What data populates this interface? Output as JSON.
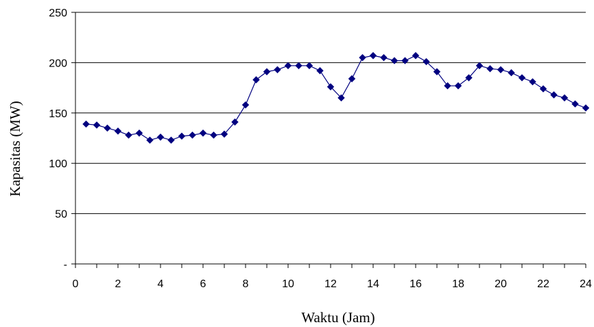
{
  "chart_data": {
    "type": "line",
    "title": "",
    "xlabel": "Waktu (Jam)",
    "ylabel": "Kapasitas (MW)",
    "xlim": [
      0,
      24
    ],
    "ylim": [
      0,
      250
    ],
    "x_ticks": [
      0,
      2,
      4,
      6,
      8,
      10,
      12,
      14,
      16,
      18,
      20,
      22,
      24
    ],
    "y_ticks": [
      {
        "value": 0,
        "label": "-"
      },
      {
        "value": 50,
        "label": "50"
      },
      {
        "value": 100,
        "label": "100"
      },
      {
        "value": 150,
        "label": "150"
      },
      {
        "value": 200,
        "label": "200"
      },
      {
        "value": 250,
        "label": "250"
      }
    ],
    "grid": "horizontal",
    "legend": "none",
    "series": [
      {
        "color": "#000080",
        "marker": "diamond",
        "x": [
          0.5,
          1,
          1.5,
          2,
          2.5,
          3,
          3.5,
          4,
          4.5,
          5,
          5.5,
          6,
          6.5,
          7,
          7.5,
          8,
          8.5,
          9,
          9.5,
          10,
          10.5,
          11,
          11.5,
          12,
          12.5,
          13,
          13.5,
          14,
          14.5,
          15,
          15.5,
          16,
          16.5,
          17,
          17.5,
          18,
          18.5,
          19,
          19.5,
          20,
          20.5,
          21,
          21.5,
          22,
          22.5,
          23,
          23.5,
          24
        ],
        "y": [
          139,
          138,
          135,
          132,
          128,
          130,
          123,
          126,
          123,
          127,
          128,
          130,
          128,
          129,
          141,
          158,
          183,
          191,
          193,
          197,
          197,
          197,
          192,
          176,
          165,
          184,
          205,
          207,
          205,
          202,
          202,
          207,
          201,
          191,
          177,
          177,
          185,
          197,
          194,
          193,
          190,
          185,
          181,
          174,
          168,
          165,
          159,
          155
        ]
      }
    ]
  }
}
